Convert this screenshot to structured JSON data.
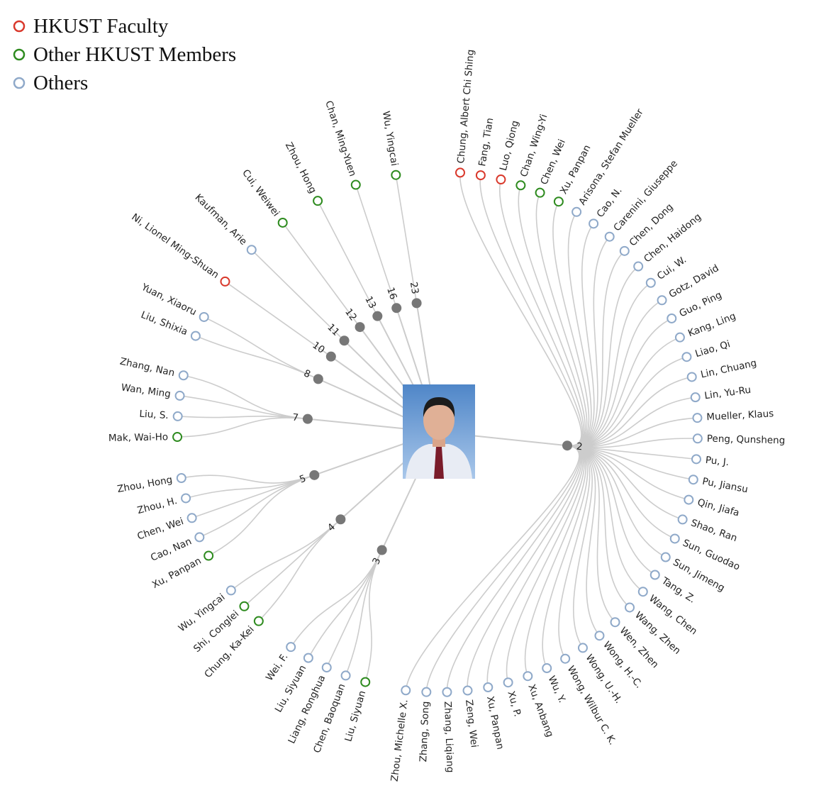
{
  "legend": [
    {
      "label": "HKUST Faculty",
      "color": "#d9382b"
    },
    {
      "label": "Other HKUST Members",
      "color": "#2e8b1f"
    },
    {
      "label": "Others",
      "color": "#8fa9c9"
    }
  ],
  "groups": [
    {
      "label": 2,
      "members": [
        {
          "name": "Chung, Albert Chi Shing",
          "color": "#d9382b"
        },
        {
          "name": "Fang, Tian",
          "color": "#d9382b"
        },
        {
          "name": "Luo, Qiong",
          "color": "#d9382b"
        },
        {
          "name": "Chan, Wing-Yi",
          "color": "#2e8b1f"
        },
        {
          "name": "Chen, Wei",
          "color": "#2e8b1f"
        },
        {
          "name": "Xu, Panpan",
          "color": "#2e8b1f"
        },
        {
          "name": "Arisona, Stefan Mueller",
          "color": "#8fa9c9"
        },
        {
          "name": "Cao, N.",
          "color": "#8fa9c9"
        },
        {
          "name": "Carenini, Giuseppe",
          "color": "#8fa9c9"
        },
        {
          "name": "Chen, Dong",
          "color": "#8fa9c9"
        },
        {
          "name": "Chen, Haidong",
          "color": "#8fa9c9"
        },
        {
          "name": "Cui, W.",
          "color": "#8fa9c9"
        },
        {
          "name": "Gotz, David",
          "color": "#8fa9c9"
        },
        {
          "name": "Guo, Ping",
          "color": "#8fa9c9"
        },
        {
          "name": "Kang, Ling",
          "color": "#8fa9c9"
        },
        {
          "name": "Liao, Qi",
          "color": "#8fa9c9"
        },
        {
          "name": "Lin, Chuang",
          "color": "#8fa9c9"
        },
        {
          "name": "Lin, Yu-Ru",
          "color": "#8fa9c9"
        },
        {
          "name": "Mueller, Klaus",
          "color": "#8fa9c9"
        },
        {
          "name": "Peng, Qunsheng",
          "color": "#8fa9c9"
        },
        {
          "name": "Pu, J.",
          "color": "#8fa9c9"
        },
        {
          "name": "Pu, Jiansu",
          "color": "#8fa9c9"
        },
        {
          "name": "Qin, Jiafa",
          "color": "#8fa9c9"
        },
        {
          "name": "Shao, Ran",
          "color": "#8fa9c9"
        },
        {
          "name": "Sun, Guodao",
          "color": "#8fa9c9"
        },
        {
          "name": "Sun, Jimeng",
          "color": "#8fa9c9"
        },
        {
          "name": "Tang, Z.",
          "color": "#8fa9c9"
        },
        {
          "name": "Wang, Chen",
          "color": "#8fa9c9"
        },
        {
          "name": "Wang, Zhen",
          "color": "#8fa9c9"
        },
        {
          "name": "Wen, Zhen",
          "color": "#8fa9c9"
        },
        {
          "name": "Wong, H.-C.",
          "color": "#8fa9c9"
        },
        {
          "name": "Wong, U.-H.",
          "color": "#8fa9c9"
        },
        {
          "name": "Wong, Wilbur C. K.",
          "color": "#8fa9c9"
        },
        {
          "name": "Wu, Y.",
          "color": "#8fa9c9"
        },
        {
          "name": "Xu, Anbang",
          "color": "#8fa9c9"
        },
        {
          "name": "Xu, P.",
          "color": "#8fa9c9"
        },
        {
          "name": "Xu, Panpan",
          "color": "#8fa9c9"
        },
        {
          "name": "Zeng, Wei",
          "color": "#8fa9c9"
        },
        {
          "name": "Zhang, Liqiang",
          "color": "#8fa9c9"
        },
        {
          "name": "Zhang, Song",
          "color": "#8fa9c9"
        },
        {
          "name": "Zhou, Michelle X.",
          "color": "#8fa9c9"
        }
      ]
    },
    {
      "label": 3,
      "members": [
        {
          "name": "Liu, Siyuan",
          "color": "#2e8b1f"
        },
        {
          "name": "Chen, Baoquan",
          "color": "#8fa9c9"
        },
        {
          "name": "Liang, Ronghua",
          "color": "#8fa9c9"
        },
        {
          "name": "Liu, Siyuan",
          "color": "#8fa9c9"
        },
        {
          "name": "Wei, F.",
          "color": "#8fa9c9"
        }
      ]
    },
    {
      "label": 4,
      "members": [
        {
          "name": "Chung, Ka-Kei",
          "color": "#2e8b1f"
        },
        {
          "name": "Shi, Conglei",
          "color": "#2e8b1f"
        },
        {
          "name": "Wu, Yingcai",
          "color": "#8fa9c9"
        }
      ]
    },
    {
      "label": 5,
      "members": [
        {
          "name": "Xu, Panpan",
          "color": "#2e8b1f"
        },
        {
          "name": "Cao, Nan",
          "color": "#8fa9c9"
        },
        {
          "name": "Chen, Wei",
          "color": "#8fa9c9"
        },
        {
          "name": "Zhou, H.",
          "color": "#8fa9c9"
        },
        {
          "name": "Zhou, Hong",
          "color": "#8fa9c9"
        }
      ]
    },
    {
      "label": 7,
      "members": [
        {
          "name": "Mak, Wai-Ho",
          "color": "#2e8b1f"
        },
        {
          "name": "Liu, S.",
          "color": "#8fa9c9"
        },
        {
          "name": "Wan, Ming",
          "color": "#8fa9c9"
        },
        {
          "name": "Zhang, Nan",
          "color": "#8fa9c9"
        }
      ]
    },
    {
      "label": 8,
      "members": [
        {
          "name": "Liu, Shixia",
          "color": "#8fa9c9"
        },
        {
          "name": "Yuan, Xiaoru",
          "color": "#8fa9c9"
        }
      ]
    },
    {
      "label": 10,
      "members": [
        {
          "name": "Ni, Lionel Ming-Shuan",
          "color": "#d9382b"
        }
      ]
    },
    {
      "label": 11,
      "members": [
        {
          "name": "Kaufman, Arie",
          "color": "#8fa9c9"
        }
      ]
    },
    {
      "label": 12,
      "members": [
        {
          "name": "Cui, Weiwei",
          "color": "#2e8b1f"
        }
      ]
    },
    {
      "label": 13,
      "members": [
        {
          "name": "Zhou, Hong",
          "color": "#2e8b1f"
        }
      ]
    },
    {
      "label": 16,
      "members": [
        {
          "name": "Chan, Ming-Yuen",
          "color": "#2e8b1f"
        }
      ]
    },
    {
      "label": 23,
      "members": [
        {
          "name": "Wu, Yingcai",
          "color": "#2e8b1f"
        }
      ]
    }
  ]
}
